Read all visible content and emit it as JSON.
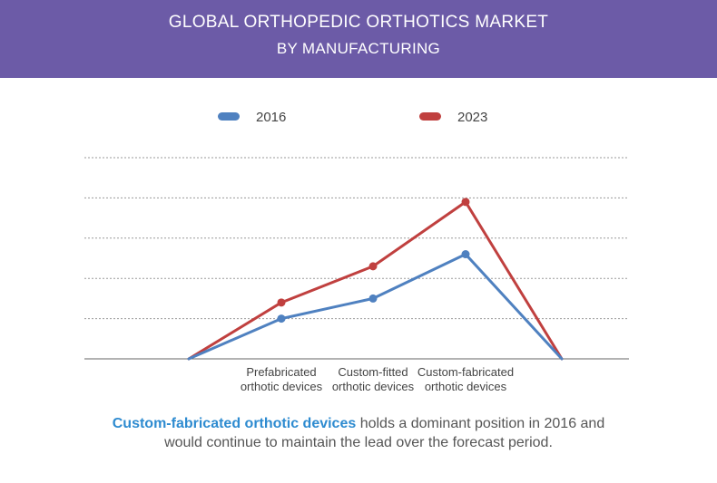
{
  "banner": {
    "title_line1": "GLOBAL ORTHOPEDIC ORTHOTICS MARKET",
    "title_line2": "BY MANUFACTURING"
  },
  "colors": {
    "banner_bg": "#6c5ba7",
    "series_2016": "#4f81c0",
    "series_2023": "#c0403f",
    "highlight": "#2e8bd0"
  },
  "chart_data": {
    "type": "line",
    "title": "GLOBAL ORTHOPEDIC ORTHOTICS MARKET BY MANUFACTURING",
    "categories": [
      "",
      "Prefabricated orthotic devices",
      "Custom-fitted orthotic devices",
      "Custom-fabricated orthotic devices",
      ""
    ],
    "category_lines": [
      [
        "",
        ""
      ],
      [
        "Prefabricated",
        "orthotic devices"
      ],
      [
        "Custom-fitted",
        "orthotic devices"
      ],
      [
        "Custom-fabricated",
        "orthotic devices"
      ],
      [
        "",
        ""
      ]
    ],
    "series": [
      {
        "name": "2016",
        "values": [
          0,
          1.0,
          1.5,
          2.6,
          0
        ],
        "color": "#4f81c0"
      },
      {
        "name": "2023",
        "values": [
          0,
          1.4,
          2.3,
          3.9,
          0
        ],
        "color": "#c0403f"
      }
    ],
    "ylim": [
      0,
      5
    ],
    "grid": true,
    "legend_position": "top",
    "xlabel": "",
    "ylabel": ""
  },
  "footnote": {
    "highlight": "Custom-fabricated orthotic devices",
    "line1_rest": " holds a dominant position in 2016 and",
    "line2": "would continue to maintain the lead over the forecast period."
  }
}
